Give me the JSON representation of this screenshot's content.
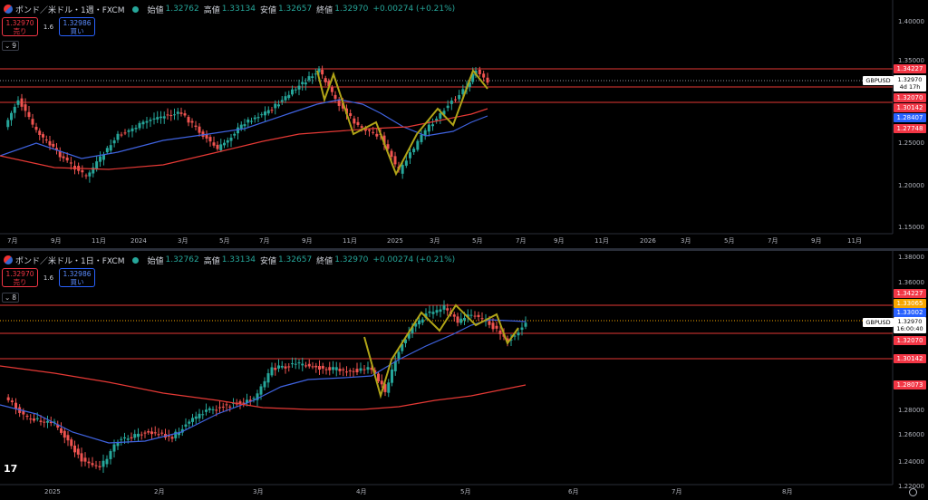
{
  "colors": {
    "up": "#26a69a",
    "down": "#ef5350",
    "ma_fast": "#3f63e0",
    "ma_slow": "#e53935",
    "zigzag": "#b0a417",
    "hline": "#e53935",
    "bg": "#000000"
  },
  "panes": [
    {
      "legend": {
        "title": "ポンド／米ドル・1週・FXCM",
        "open_label": "始値",
        "open": "1.32762",
        "high_label": "高値",
        "high": "1.33134",
        "low_label": "安値",
        "low": "1.32657",
        "close_label": "終値",
        "close": "1.32970",
        "change": "+0.00274 (+0.21%)"
      },
      "trade": {
        "sell_price": "1.32970",
        "sell_label": "売り",
        "spread": "1.6",
        "buy_price": "1.32986",
        "buy_label": "買い"
      },
      "collapse_count": "9",
      "price_axis": [
        "1.40000",
        "1.35000",
        "1.25000",
        "1.20000",
        "1.15000"
      ],
      "price_labels": [
        {
          "text": "1.34227",
          "color": "#f23645"
        },
        {
          "text": "1.32070",
          "color": "#f23645"
        },
        {
          "text": "1.30142",
          "color": "#f23645"
        },
        {
          "text": "1.28407",
          "color": "#2962ff"
        },
        {
          "text": "1.27748",
          "color": "#f23645"
        }
      ],
      "symbol": "GBPUSD",
      "current": {
        "price": "1.32970",
        "countdown": "4d 17h"
      },
      "time_axis": [
        "7月",
        "9月",
        "11月",
        "2024",
        "3月",
        "5月",
        "7月",
        "9月",
        "11月",
        "2025",
        "3月",
        "5月",
        "7月",
        "9月",
        "11月",
        "2026",
        "3月",
        "5月",
        "7月",
        "9月",
        "11月"
      ]
    },
    {
      "legend": {
        "title": "ポンド／米ドル・1日・FXCM",
        "open_label": "始値",
        "open": "1.32762",
        "high_label": "高値",
        "high": "1.33134",
        "low_label": "安値",
        "low": "1.32657",
        "close_label": "終値",
        "close": "1.32970",
        "change": "+0.00274 (+0.21%)"
      },
      "trade": {
        "sell_price": "1.32970",
        "sell_label": "売り",
        "spread": "1.6",
        "buy_price": "1.32986",
        "buy_label": "買い"
      },
      "collapse_count": "8",
      "price_axis": [
        "1.38000",
        "1.36000",
        "1.28000",
        "1.26000",
        "1.24000",
        "1.22000"
      ],
      "price_labels": [
        {
          "text": "1.34227",
          "color": "#f23645"
        },
        {
          "text": "1.33065",
          "color": "#f7a600"
        },
        {
          "text": "1.33002",
          "color": "#2962ff"
        },
        {
          "text": "1.32070",
          "color": "#f23645"
        },
        {
          "text": "1.30142",
          "color": "#f23645"
        },
        {
          "text": "1.28073",
          "color": "#f23645"
        }
      ],
      "symbol": "GBPUSD",
      "current": {
        "price": "1.32970",
        "countdown": "16:00:40"
      },
      "time_axis": [
        "2025",
        "2月",
        "3月",
        "4月",
        "5月",
        "6月",
        "7月",
        "8月"
      ]
    }
  ]
}
